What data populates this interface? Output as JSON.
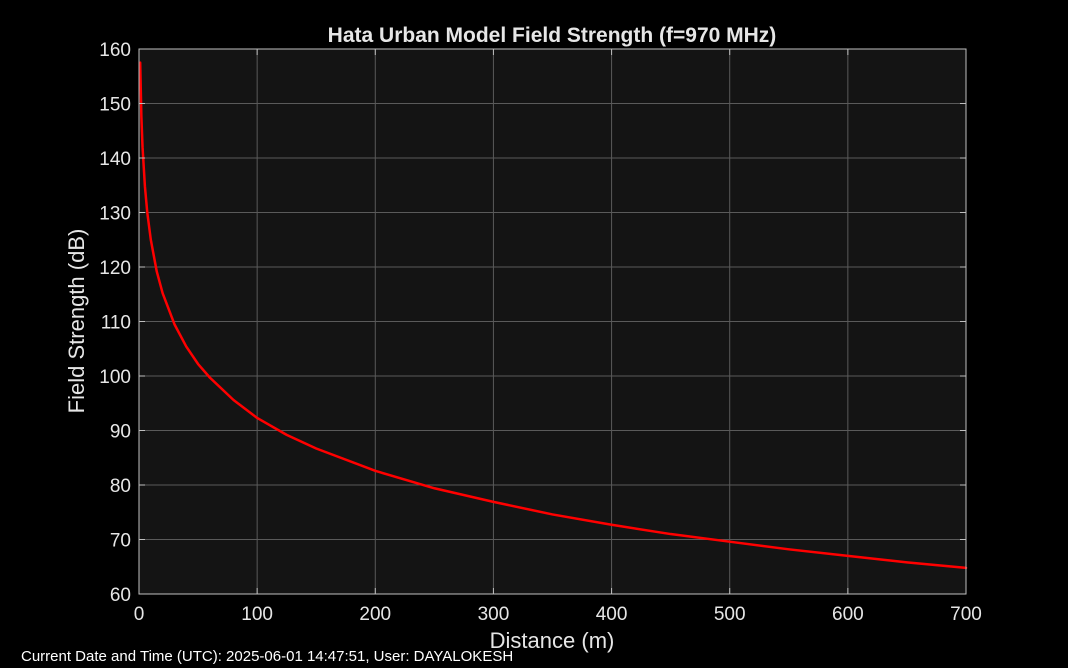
{
  "footer": {
    "text": "Current Date and Time (UTC): 2025-06-01 14:47:51, User: DAYALOKESH"
  },
  "colors": {
    "background": "#000000",
    "plot_background": "#141414",
    "grid": "#5a5a5a",
    "axes": "#bfbfbf",
    "text": "#e6e6e6",
    "series": "#ff0000"
  },
  "chart_data": {
    "type": "line",
    "title": "Hata Urban Model Field Strength (f=970 MHz)",
    "xlabel": "Distance (m)",
    "ylabel": "Field Strength (dB)",
    "xlim": [
      0,
      700
    ],
    "ylim": [
      60,
      160
    ],
    "xticks": [
      0,
      100,
      200,
      300,
      400,
      500,
      600,
      700
    ],
    "yticks": [
      60,
      70,
      80,
      90,
      100,
      110,
      120,
      130,
      140,
      150,
      160
    ],
    "grid": true,
    "legend": "none",
    "series": [
      {
        "color": "#ff0000",
        "x": [
          1,
          2,
          3,
          5,
          7,
          10,
          15,
          20,
          30,
          40,
          50,
          60,
          80,
          100,
          125,
          150,
          200,
          250,
          300,
          350,
          400,
          450,
          500,
          550,
          600,
          650,
          700
        ],
        "y": [
          157.5,
          147.7,
          142.0,
          134.8,
          130.0,
          125.0,
          119.2,
          115.2,
          109.5,
          105.4,
          102.2,
          99.7,
          95.6,
          92.3,
          89.2,
          86.7,
          82.6,
          79.4,
          76.9,
          74.6,
          72.7,
          71.0,
          69.6,
          68.2,
          67.0,
          65.8,
          64.8
        ]
      }
    ]
  }
}
